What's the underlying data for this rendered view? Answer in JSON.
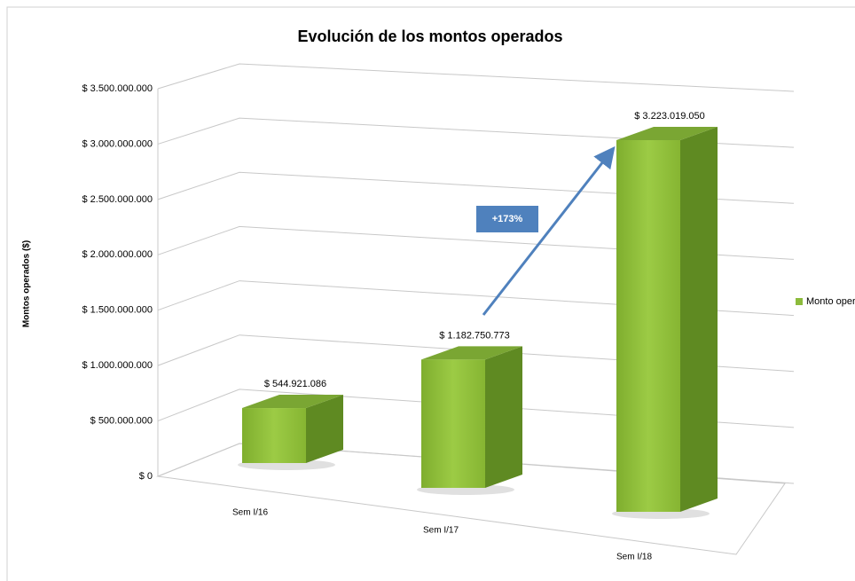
{
  "chart_data": {
    "type": "bar3d",
    "title": "Evolución de los montos operados",
    "y_axis_label": "Montos operados ($)",
    "categories": [
      "Sem I/16",
      "Sem I/17",
      "Sem I/18"
    ],
    "series": [
      {
        "name": "Monto operado",
        "color": "#8cbb3c",
        "values": [
          544921086,
          1182750773,
          3223019050
        ],
        "value_labels": [
          "$ 544.921.086",
          "$ 1.182.750.773",
          "$ 3.223.019.050"
        ]
      }
    ],
    "annotation": "+173%",
    "ylim": [
      0,
      3500000000
    ],
    "yticks": [
      {
        "value": 0,
        "label": "$ 0"
      },
      {
        "value": 500000000,
        "label": "$ 500.000.000"
      },
      {
        "value": 1000000000,
        "label": "$ 1.000.000.000"
      },
      {
        "value": 1500000000,
        "label": "$ 1.500.000.000"
      },
      {
        "value": 2000000000,
        "label": "$ 2.000.000.000"
      },
      {
        "value": 2500000000,
        "label": "$ 2.500.000.000"
      },
      {
        "value": 3000000000,
        "label": "$ 3.000.000.000"
      },
      {
        "value": 3500000000,
        "label": "$ 3.500.000.000"
      }
    ],
    "grid": true,
    "legend": "right"
  }
}
